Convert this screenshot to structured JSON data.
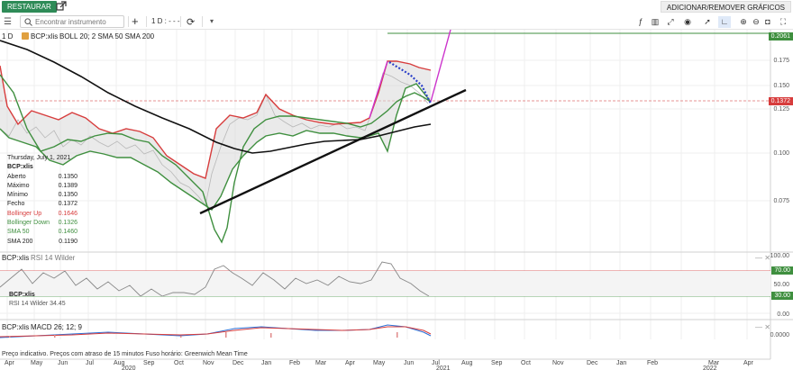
{
  "header": {
    "restore_label": "RESTAURAR",
    "add_remove_label": "ADICIONAR/REMOVER GRÁFICOS"
  },
  "toolbar": {
    "search_placeholder": "Encontrar instrumento",
    "add_symbol": "+",
    "interval": "1 D : - - -",
    "right_icons": [
      "indicator-icon",
      "chart-type-icon",
      "compare-icon",
      "line-tool-icon",
      "eye-icon",
      "cursor-icon",
      "drawing-mode-icon",
      "zoom-icon",
      "zoom-out-icon",
      "camera-icon",
      "fullscreen-icon"
    ]
  },
  "main_chart": {
    "interval": "1 D",
    "symbol": "BCP:xlis",
    "studies": "BOLL 20; 2   SMA 50   SMA 200",
    "price_axis": [
      "0.175",
      "0.150",
      "0.125",
      "0.100",
      "0.075"
    ],
    "last_price_tag": "0.1372",
    "high_tag": "0.2061",
    "colors": {
      "up": "#d73c3c",
      "down": "#3f8f3f",
      "sma50": "#3f8f3f",
      "sma200": "#111111",
      "trend": "#cc33cc"
    }
  },
  "tooltip": {
    "date": "Thursday, July 1, 2021",
    "symbol": "BCP:xlis",
    "rows": [
      {
        "label": "Aberto",
        "value": "0.1350",
        "color": "#222222"
      },
      {
        "label": "Máximo",
        "value": "0.1389",
        "color": "#222222"
      },
      {
        "label": "Mínimo",
        "value": "0.1350",
        "color": "#222222"
      },
      {
        "label": "Fecho",
        "value": "0.1372",
        "color": "#222222"
      },
      {
        "label": "Bollinger Up",
        "value": "0.1646",
        "color": "#d73c3c"
      },
      {
        "label": "Bollinger Down",
        "value": "0.1326",
        "color": "#3f8f3f"
      },
      {
        "label": "SMA 50",
        "value": "0.1460",
        "color": "#3f8f3f"
      },
      {
        "label": "SMA 200",
        "value": "0.1190",
        "color": "#222222"
      }
    ]
  },
  "rsi_panel": {
    "symbol": "BCP:xlis",
    "name": "RSI 14 Wilder",
    "tooltip_symbol": "BCP:xlis",
    "tooltip_value_label": "RSI 14 Wilder",
    "tooltip_value": "34.45",
    "axis": [
      "100.00",
      "50.00",
      "0.00"
    ],
    "upper_tag": "70.00",
    "lower_tag": "30.00"
  },
  "macd_panel": {
    "symbol": "BCP:xlis",
    "name": "MACD 26; 12; 9",
    "axis": "0.0000"
  },
  "footer": {
    "disclaimer": "Preço indicativo. Preços com atraso de 15 minutos   Fuso horário: Greenwich Mean Time",
    "months": [
      "Apr",
      "May",
      "Jun",
      "Jul",
      "Aug",
      "Sep",
      "Oct",
      "Nov",
      "Dec",
      "Jan",
      "Feb",
      "Mar",
      "Apr",
      "May",
      "Jun",
      "Jul",
      "Aug",
      "Sep",
      "Oct",
      "Nov",
      "Dec",
      "Jan",
      "Feb",
      "Mar",
      "Apr"
    ],
    "years": [
      "2020",
      "2021",
      "2022"
    ]
  },
  "chart_data": {
    "type": "line",
    "title": "BCP:xlis",
    "x_range": [
      "2020-04",
      "2022-04"
    ],
    "ylim": [
      0.05,
      0.21
    ],
    "series": [
      {
        "name": "Fecho",
        "x": [
          "2020-04",
          "2020-05",
          "2020-06",
          "2020-07",
          "2020-08",
          "2020-09",
          "2020-10",
          "2020-11",
          "2020-12",
          "2021-01",
          "2021-02",
          "2021-03",
          "2021-04",
          "2021-05",
          "2021-06",
          "2021-07"
        ],
        "values": [
          0.13,
          0.105,
          0.125,
          0.112,
          0.105,
          0.085,
          0.075,
          0.098,
          0.135,
          0.14,
          0.125,
          0.128,
          0.12,
          0.165,
          0.155,
          0.137
        ]
      },
      {
        "name": "SMA 200",
        "values": [
          0.19,
          0.165,
          0.15,
          0.135,
          0.122,
          0.115,
          0.108,
          0.1,
          0.102,
          0.108,
          0.11,
          0.112,
          0.114,
          0.116,
          0.118,
          0.119
        ]
      },
      {
        "name": "SMA 50",
        "values": [
          0.15,
          0.11,
          0.118,
          0.116,
          0.11,
          0.095,
          0.085,
          0.082,
          0.118,
          0.128,
          0.128,
          0.126,
          0.124,
          0.132,
          0.148,
          0.146
        ]
      }
    ]
  }
}
